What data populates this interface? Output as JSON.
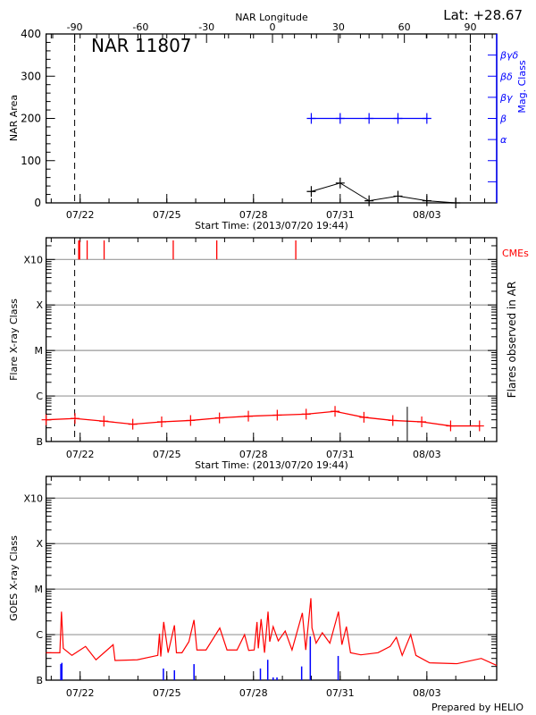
{
  "title_ar": "NAR 11807",
  "latitude_label": "Lat: +28.67",
  "footer": "Prepared by HELIO",
  "colors": {
    "flare": "#ff0000",
    "mag_class": "#0000ff",
    "goes_events": "#0000ff",
    "grid": "#999999",
    "axes": "#000000"
  },
  "time_axis": {
    "xlim": [
      "2013-07-20T19:44",
      "2013-08-05T10:00"
    ],
    "tick_labels": [
      "07/22",
      "07/25",
      "07/28",
      "07/31",
      "08/03"
    ],
    "tick_dates": [
      "2013-07-22T00:00",
      "2013-07-25T00:00",
      "2013-07-28T00:00",
      "2013-07-31T00:00",
      "2013-08-03T00:00"
    ],
    "minor_ticks": "daily",
    "xlabel": "Start Time: (2013/07/20 19:44)"
  },
  "chart_data": [
    {
      "type": "line",
      "ylabel": "NAR Area",
      "ylim": [
        0,
        400
      ],
      "yticks": [
        0,
        100,
        200,
        300,
        400
      ],
      "top_axis": {
        "label": "NAR Longitude",
        "xlim": [
          -103,
          102
        ],
        "ticks": [
          -90,
          -60,
          -30,
          0,
          30,
          60,
          90
        ]
      },
      "limb_longitudes": [
        -90,
        90
      ],
      "area_series": {
        "x": [
          "2013-07-30T00:00",
          "2013-07-31T00:00",
          "2013-08-01T00:00",
          "2013-08-02T00:00",
          "2013-08-03T00:00",
          "2013-08-04T00:00"
        ],
        "y": [
          27,
          47,
          5,
          16,
          5,
          0
        ]
      },
      "mag_class_axis": {
        "label": "Mag. Class",
        "levels": [
          {
            "label": "α",
            "area_equiv": 150
          },
          {
            "label": "β",
            "area_equiv": 200
          },
          {
            "label": "βγ",
            "area_equiv": 250
          },
          {
            "label": "βδ",
            "area_equiv": 300
          },
          {
            "label": "βγδ",
            "area_equiv": 350
          }
        ],
        "tick_values": [
          50,
          100,
          150,
          200,
          250,
          300,
          350
        ]
      },
      "mag_class_series": {
        "x": [
          "2013-07-30T00:00",
          "2013-07-31T00:00",
          "2013-08-01T00:00",
          "2013-08-02T00:00",
          "2013-08-03T00:00"
        ],
        "class": [
          "β",
          "β",
          "β",
          "β",
          "β"
        ]
      },
      "grid": false
    },
    {
      "type": "line",
      "ylabel": "Flare X-ray Class",
      "right_label": "Flares observed in AR",
      "cme_label": "CMEs",
      "yscale": "log",
      "ylim": [
        1e-07,
        0.003
      ],
      "yticks": [
        {
          "label": "B",
          "value": 1e-07
        },
        {
          "label": "C",
          "value": 1e-06
        },
        {
          "label": "M",
          "value": 1e-05
        },
        {
          "label": "X",
          "value": 0.0001
        },
        {
          "label": "X10",
          "value": 0.001
        }
      ],
      "grid": true,
      "flare_series": {
        "x": [
          "2013-07-20T19:44",
          "2013-07-21T19:44",
          "2013-07-22T19:44",
          "2013-07-23T19:44",
          "2013-07-24T19:44",
          "2013-07-25T19:44",
          "2013-07-26T19:44",
          "2013-07-27T19:44",
          "2013-07-28T19:44",
          "2013-07-29T19:44",
          "2013-07-30T19:44",
          "2013-07-31T19:44",
          "2013-08-01T19:44",
          "2013-08-02T19:44",
          "2013-08-03T19:44",
          "2013-08-04T19:44"
        ],
        "y": [
          3e-07,
          3.2e-07,
          2.8e-07,
          2.4e-07,
          2.7e-07,
          2.9e-07,
          3.3e-07,
          3.6e-07,
          3.8e-07,
          4e-07,
          4.6e-07,
          3.4e-07,
          2.9e-07,
          2.7e-07,
          2.2e-07,
          2.2e-07
        ]
      },
      "cmes": [
        "2013-07-21T22:50",
        "2013-07-21T23:35",
        "2013-07-22T05:50",
        "2013-07-22T19:56",
        "2013-07-25T05:20",
        "2013-07-26T17:30",
        "2013-07-29T11:08"
      ],
      "observed_flares": [
        {
          "time": "2013-08-02T07:44",
          "flux": 5.8e-07
        }
      ]
    },
    {
      "type": "line",
      "ylabel": "GOES X-ray Class",
      "yscale": "log",
      "ylim": [
        1e-07,
        0.003
      ],
      "yticks": [
        {
          "label": "B",
          "value": 1e-07
        },
        {
          "label": "C",
          "value": 1e-06
        },
        {
          "label": "M",
          "value": 1e-05
        },
        {
          "label": "X",
          "value": 0.0001
        },
        {
          "label": "X10",
          "value": 0.001
        }
      ],
      "grid": true,
      "goes_series": {
        "x": [
          "2013-07-20T19:44",
          "2013-07-21T07:10",
          "2013-07-21T08:30",
          "2013-07-21T10:00",
          "2013-07-21T17:10",
          "2013-07-22T04:30",
          "2013-07-22T13:10",
          "2013-07-23T03:25",
          "2013-07-23T05:00",
          "2013-07-23T23:25",
          "2013-07-24T16:30",
          "2013-07-24T17:55",
          "2013-07-24T19:00",
          "2013-07-24T21:25",
          "2013-07-25T01:05",
          "2013-07-25T06:20",
          "2013-07-25T08:00",
          "2013-07-25T12:35",
          "2013-07-25T18:20",
          "2013-07-25T22:35",
          "2013-07-26T01:00",
          "2013-07-26T08:35",
          "2013-07-26T20:00",
          "2013-07-27T02:00",
          "2013-07-27T10:20",
          "2013-07-27T16:35",
          "2013-07-27T20:00",
          "2013-07-28T00:35",
          "2013-07-28T02:55",
          "2013-07-28T04:00",
          "2013-07-28T06:20",
          "2013-07-28T09:10",
          "2013-07-28T12:05",
          "2013-07-28T13:30",
          "2013-07-28T16:20",
          "2013-07-28T20:35",
          "2013-07-29T02:20",
          "2013-07-29T08:00",
          "2013-07-29T16:35",
          "2013-07-29T19:25",
          "2013-07-29T23:40",
          "2013-07-30T00:35",
          "2013-07-30T04:00",
          "2013-07-30T09:10",
          "2013-07-30T15:25",
          "2013-07-30T22:35",
          "2013-07-31T01:25",
          "2013-07-31T05:10",
          "2013-07-31T08:35",
          "2013-07-31T17:10",
          "2013-08-01T07:25",
          "2013-08-01T17:30",
          "2013-08-01T22:40",
          "2013-08-02T03:30",
          "2013-08-02T10:35",
          "2013-08-02T14:55",
          "2013-08-03T02:20",
          "2013-08-04T01:10",
          "2013-08-04T21:10",
          "2013-08-05T10:00"
        ],
        "y": [
          4e-07,
          4e-07,
          3.2e-06,
          5e-07,
          3.5e-07,
          5.5e-07,
          2.8e-07,
          6e-07,
          2.7e-07,
          2.8e-07,
          3.5e-07,
          1.05e-06,
          3.3e-07,
          1.9e-06,
          4e-07,
          1.6e-06,
          4e-07,
          4e-07,
          7e-07,
          2.1e-06,
          4.6e-07,
          4.6e-07,
          1.4e-06,
          4.6e-07,
          4.6e-07,
          1e-06,
          4.5e-07,
          4.6e-07,
          1.9e-06,
          5e-07,
          2.2e-06,
          4e-07,
          3.2e-06,
          7e-07,
          1.5e-06,
          7.3e-07,
          1.2e-06,
          4.6e-07,
          3e-06,
          4.6e-07,
          6.3e-06,
          1.4e-06,
          6.5e-07,
          1.1e-06,
          6.5e-07,
          3.2e-06,
          6e-07,
          1.5e-06,
          4e-07,
          3.6e-07,
          4e-07,
          5.5e-07,
          8.7e-07,
          3.5e-07,
          1e-06,
          3.5e-07,
          2.4e-07,
          2.3e-07,
          3e-07,
          2.1e-07
        ]
      },
      "goes_events": {
        "x": [
          "2013-07-21T08:00",
          "2013-07-21T08:50",
          "2013-07-24T21:10",
          "2013-07-25T06:20",
          "2013-07-25T22:35",
          "2013-07-28T05:45",
          "2013-07-28T11:50",
          "2013-07-28T16:20",
          "2013-07-28T19:30",
          "2013-07-29T16:00",
          "2013-07-29T23:10",
          "2013-07-30T22:20"
        ],
        "y": [
          2.25e-07,
          2.4e-07,
          1.8e-07,
          1.65e-07,
          2.25e-07,
          1.8e-07,
          2.8e-07,
          1.15e-07,
          1.15e-07,
          2e-07,
          9.1e-07,
          3.4e-07
        ]
      }
    }
  ]
}
